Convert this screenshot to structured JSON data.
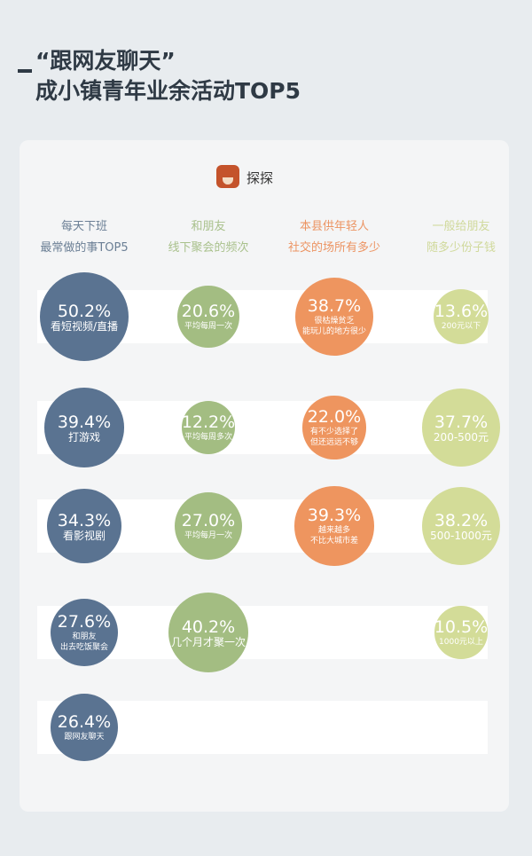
{
  "title": {
    "line1": "“跟网友聊天”",
    "line2": "成小镇青年业余活动TOP5"
  },
  "brand": {
    "name": "探探"
  },
  "colors": [
    "#5a7391",
    "#a3bd82",
    "#ee955f",
    "#d3dc98"
  ],
  "chart_data": {
    "type": "bubble",
    "columns": [
      {
        "header": [
          "每天下班",
          "最常做的事TOP5"
        ],
        "items": [
          {
            "value": 50.2,
            "label": [
              "看短视频/直播"
            ]
          },
          {
            "value": 39.4,
            "label": [
              "打游戏"
            ]
          },
          {
            "value": 34.3,
            "label": [
              "看影视剧"
            ]
          },
          {
            "value": 27.6,
            "label": [
              "和朋友",
              "出去吃饭聚会"
            ]
          },
          {
            "value": 26.4,
            "label": [
              "跟网友聊天"
            ]
          }
        ]
      },
      {
        "header": [
          "和朋友",
          "线下聚会的频次"
        ],
        "items": [
          {
            "value": 20.6,
            "label": [
              "平均每周一次"
            ]
          },
          {
            "value": 12.2,
            "label": [
              "平均每周多次"
            ]
          },
          {
            "value": 27.0,
            "label": [
              "平均每月一次"
            ]
          },
          {
            "value": 40.2,
            "label": [
              "几个月才聚一次"
            ]
          }
        ]
      },
      {
        "header": [
          "本县供年轻人",
          "社交的场所有多少"
        ],
        "items": [
          {
            "value": 38.7,
            "label": [
              "很枯燥贫乏",
              "能玩儿的地方很少"
            ]
          },
          {
            "value": 22.0,
            "label": [
              "有不少选择了",
              "但还远远不够"
            ]
          },
          {
            "value": 39.3,
            "label": [
              "越来越多",
              "不比大城市差"
            ]
          }
        ]
      },
      {
        "header": [
          "一般给朋友",
          "随多少份子钱"
        ],
        "items": [
          {
            "value": 13.6,
            "label": [
              "200元以下"
            ]
          },
          {
            "value": 37.7,
            "label": [
              "200-500元"
            ]
          },
          {
            "value": 38.2,
            "label": [
              "500-1000元"
            ]
          },
          {
            "value": 10.5,
            "label": [
              "1000元以上"
            ]
          }
        ]
      }
    ]
  }
}
